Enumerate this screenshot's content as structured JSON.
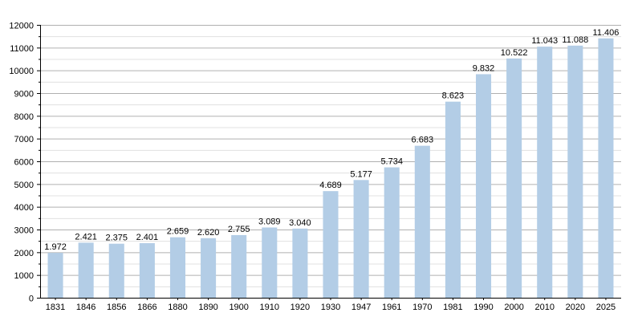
{
  "chart_data": {
    "type": "bar",
    "title": "",
    "xlabel": "",
    "ylabel": "",
    "categories": [
      "1831",
      "1846",
      "1856",
      "1866",
      "1880",
      "1890",
      "1900",
      "1910",
      "1920",
      "1930",
      "1947",
      "1961",
      "1970",
      "1981",
      "1990",
      "2000",
      "2010",
      "2020",
      "2025"
    ],
    "values": [
      1972,
      2421,
      2375,
      2401,
      2659,
      2620,
      2755,
      3089,
      3040,
      4689,
      5177,
      5734,
      6683,
      8623,
      9832,
      10522,
      11043,
      11088,
      11406
    ],
    "data_labels": [
      "1.972",
      "2.421",
      "2.375",
      "2.401",
      "2.659",
      "2.620",
      "2.755",
      "3.089",
      "3.040",
      "4.689",
      "5.177",
      "5.734",
      "6.683",
      "8.623",
      "9.832",
      "10.522",
      "11.043",
      "11.088",
      "11.406"
    ],
    "y_ticks": [
      "0",
      "1000",
      "2000",
      "3000",
      "4000",
      "5000",
      "6000",
      "7000",
      "8000",
      "9000",
      "10000",
      "11000",
      "12000"
    ],
    "ylim": [
      0,
      12000
    ],
    "grid": true,
    "legend": "none",
    "colors": {
      "bar": "#b3cde6",
      "grid_major": "#b0b0b0",
      "grid_minor": "#e0e0e0",
      "axis": "#000000"
    }
  }
}
